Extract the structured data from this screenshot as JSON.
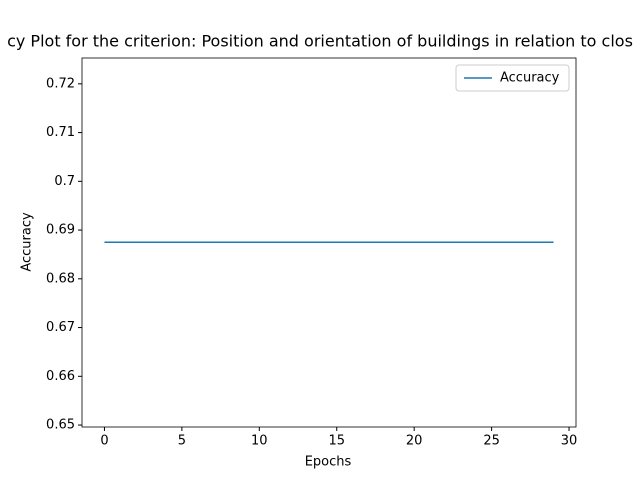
{
  "chart_data": {
    "type": "line",
    "title": "cy Plot for the criterion: Position and orientation of buildings in relation to clos",
    "x_label": "Epochs",
    "y_label": "Accuracy",
    "x": [
      0,
      1,
      2,
      3,
      4,
      5,
      6,
      7,
      8,
      9,
      10,
      11,
      12,
      13,
      14,
      15,
      16,
      17,
      18,
      19,
      20,
      21,
      22,
      23,
      24,
      25,
      26,
      27,
      28,
      29
    ],
    "series": [
      {
        "name": "Accuracy",
        "color": "#1f77b4",
        "values": [
          0.6875,
          0.6875,
          0.6875,
          0.6875,
          0.6875,
          0.6875,
          0.6875,
          0.6875,
          0.6875,
          0.6875,
          0.6875,
          0.6875,
          0.6875,
          0.6875,
          0.6875,
          0.6875,
          0.6875,
          0.6875,
          0.6875,
          0.6875,
          0.6875,
          0.6875,
          0.6875,
          0.6875,
          0.6875,
          0.6875,
          0.6875,
          0.6875,
          0.6875,
          0.6875
        ]
      }
    ],
    "xlim": [
      -1.45,
      30.45
    ],
    "xticks": [
      0,
      5,
      10,
      15,
      20,
      25,
      30
    ],
    "ylim": [
      0.6496,
      0.7253
    ],
    "yticks": [
      0.65,
      0.66,
      0.67,
      0.68,
      0.69,
      0.7,
      0.71,
      0.72
    ],
    "legend": "upper right"
  }
}
